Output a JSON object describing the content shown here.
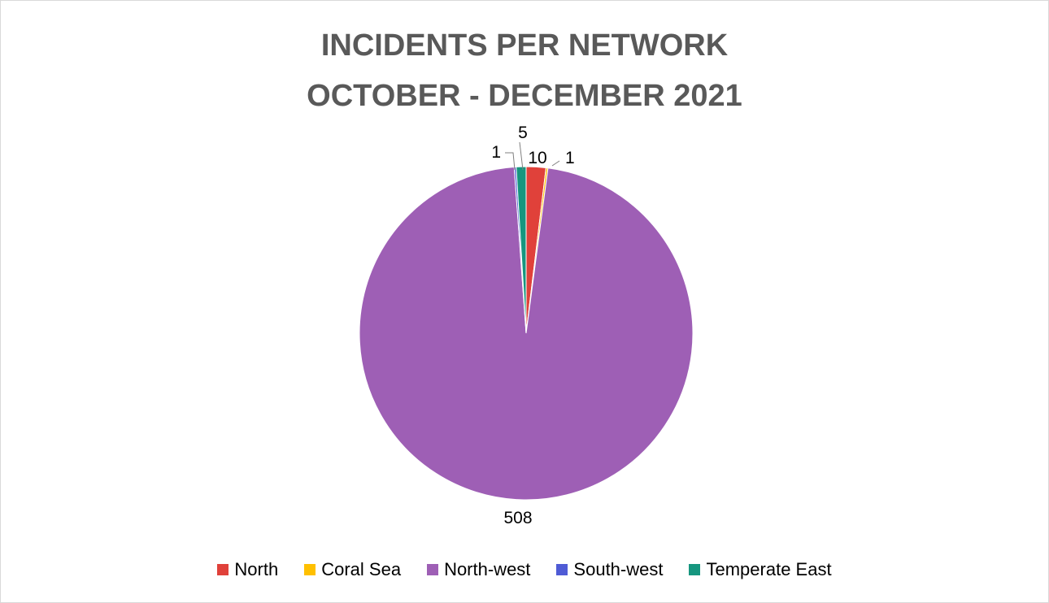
{
  "chart_data": {
    "type": "pie",
    "title": "INCIDENTS PER NETWORK",
    "subtitle": "OCTOBER - DECEMBER 2021",
    "categories": [
      "North",
      "Coral Sea",
      "North-west",
      "South-west",
      "Temperate East"
    ],
    "values": [
      10,
      1,
      508,
      1,
      5
    ],
    "colors": [
      "#e0413a",
      "#ffc000",
      "#9e5fb5",
      "#4f5bd5",
      "#16967f"
    ],
    "legend_position": "bottom",
    "start_angle_deg": 0,
    "direction": "clockwise"
  }
}
